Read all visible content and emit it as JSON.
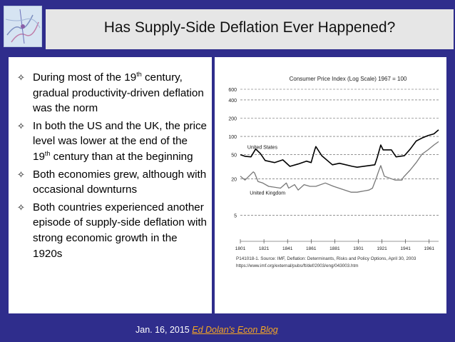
{
  "slide": {
    "title": "Has Supply-Side Deflation Ever Happened?",
    "bullets": [
      {
        "pre": "During most of the 19",
        "sup": "th",
        "post": " century, gradual productivity-driven deflation was the norm"
      },
      {
        "pre": "In both the US and the UK, the price level was lower at the end of the 19",
        "sup": "th",
        "post": " century than at the beginning"
      },
      {
        "pre": "Both economies grew, although with occasional downturns",
        "sup": "",
        "post": ""
      },
      {
        "pre": "Both countries experienced another episode of supply-side deflation with strong economic growth in the 1920s",
        "sup": "",
        "post": ""
      }
    ],
    "bullet_icon": "four-pointed-star-icon",
    "footer": {
      "date": "Jan. 16, 2015",
      "link": "Ed Dolan's Econ Blog"
    },
    "colors": {
      "background": "#2f2d8c",
      "title_bar": "#e6e6e6",
      "link": "#f5a623"
    }
  },
  "chart_data": {
    "type": "line",
    "title": "Consumer Price Index (Log Scale) 1967 = 100",
    "xlabel": "",
    "ylabel": "",
    "y_scale": "log",
    "ylim": [
      2.5,
      600
    ],
    "xlim": [
      1801,
      1969
    ],
    "grid": "dashed horizontal",
    "y_ticks": [
      600,
      400,
      200,
      100,
      50,
      20,
      5
    ],
    "x_ticks": [
      1801,
      1821,
      1841,
      1861,
      1881,
      1901,
      1921,
      1941,
      1961
    ],
    "annotations": [
      "United States",
      "United Kingdom"
    ],
    "source": "P141018-1. Source: IMF, Deflation: Determinants, Risks and Policy Options, April 30, 2003",
    "source_url": "https://www.imf.org/external/pubs/ft/def/2003/eng/043003.htm",
    "series": [
      {
        "name": "United States",
        "color": "#000000",
        "x": [
          1801,
          1805,
          1810,
          1814,
          1818,
          1822,
          1830,
          1837,
          1843,
          1850,
          1857,
          1861,
          1864,
          1865,
          1870,
          1879,
          1885,
          1896,
          1900,
          1910,
          1915,
          1917,
          1920,
          1922,
          1929,
          1933,
          1940,
          1945,
          1950,
          1955,
          1960,
          1965,
          1969
        ],
        "y": [
          50,
          47,
          46,
          62,
          52,
          40,
          37,
          41,
          32,
          35,
          39,
          37,
          60,
          68,
          48,
          34,
          36,
          32,
          31,
          33,
          34,
          45,
          72,
          60,
          60,
          46,
          48,
          62,
          84,
          94,
          103,
          110,
          128
        ]
      },
      {
        "name": "United Kingdom",
        "color": "#777777",
        "x": [
          1801,
          1805,
          1812,
          1813,
          1816,
          1820,
          1825,
          1835,
          1840,
          1842,
          1847,
          1850,
          1855,
          1860,
          1865,
          1873,
          1880,
          1895,
          1900,
          1910,
          1913,
          1916,
          1918,
          1920,
          1923,
          1932,
          1938,
          1939,
          1945,
          1950,
          1955,
          1960,
          1965,
          1969
        ],
        "y": [
          22,
          19,
          26,
          25,
          18,
          17,
          15,
          14,
          17,
          14,
          16,
          13,
          16,
          15,
          15,
          17,
          15,
          12,
          12,
          13,
          14,
          20,
          26,
          33,
          22,
          19,
          19,
          21,
          28,
          37,
          51,
          60,
          72,
          82
        ]
      }
    ]
  }
}
